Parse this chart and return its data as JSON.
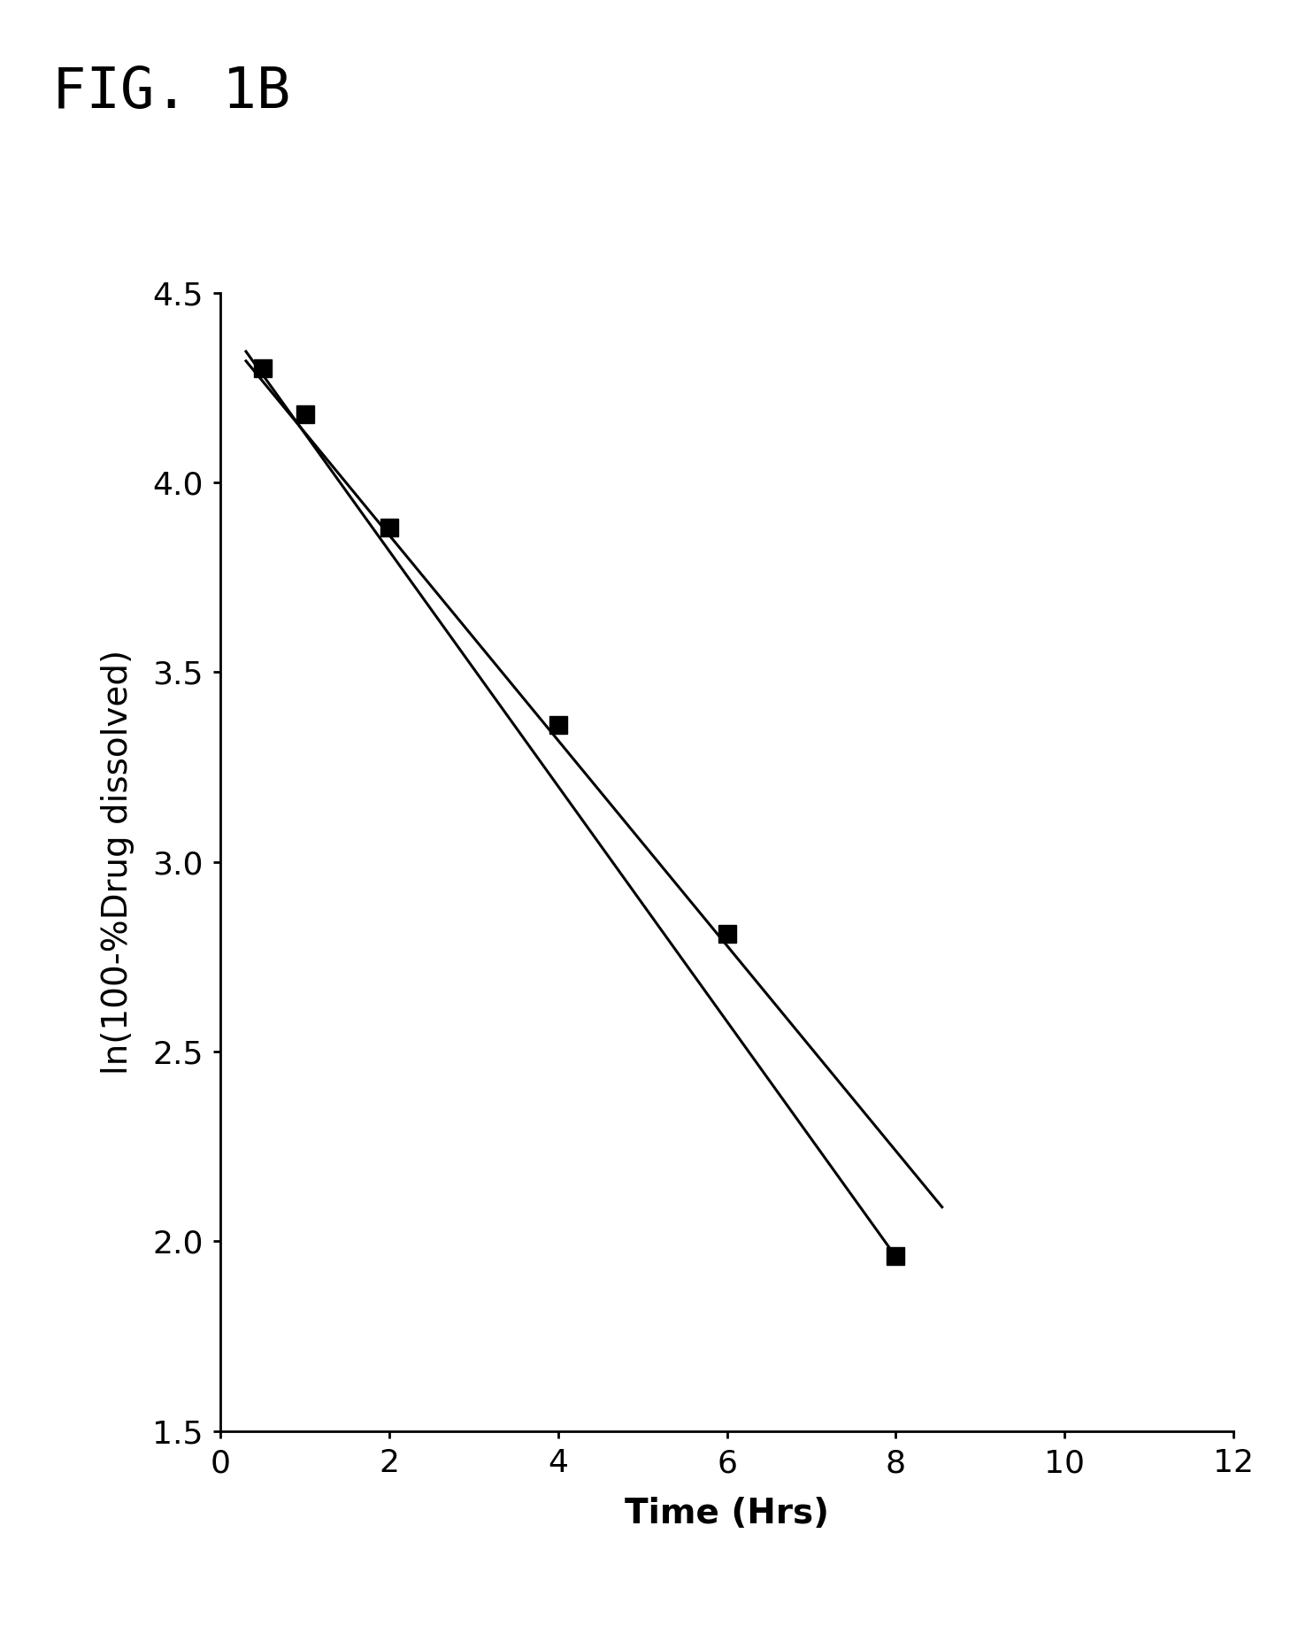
{
  "title": "FIG. 1B",
  "xlabel": "Time (Hrs)",
  "ylabel": "ln(100-%Drug dissolved)",
  "xlim": [
    0,
    12
  ],
  "ylim": [
    1.5,
    4.5
  ],
  "xticks": [
    0,
    2,
    4,
    6,
    8,
    10,
    12
  ],
  "yticks": [
    1.5,
    2.0,
    2.5,
    3.0,
    3.5,
    4.0,
    4.5
  ],
  "data_x": [
    0.5,
    1.0,
    2.0,
    4.0,
    6.0,
    8.0
  ],
  "data_y": [
    4.3,
    4.18,
    3.88,
    3.36,
    2.81,
    1.96
  ],
  "line1_x": [
    0.3,
    8.0
  ],
  "line1_y": [
    4.345,
    1.96
  ],
  "line2_x": [
    0.3,
    8.55
  ],
  "line2_y": [
    4.32,
    2.09
  ],
  "marker_color": "#000000",
  "line_color": "#000000",
  "background_color": "#ffffff",
  "title_fontsize": 46,
  "axis_label_fontsize": 28,
  "tick_fontsize": 26,
  "marker_size": 14,
  "line_width": 2.2
}
